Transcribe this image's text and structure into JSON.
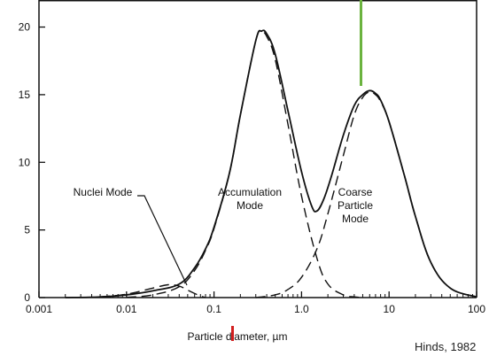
{
  "chart_data": {
    "type": "line",
    "title": "",
    "xlabel": "Particle diameter, µm",
    "ylabel": "",
    "xscale": "log",
    "xlim": [
      0.001,
      100
    ],
    "ylim": [
      0,
      22
    ],
    "grid": false,
    "x_tick_labels": [
      "0.001",
      "0.01",
      "0.1",
      "1.0",
      "10",
      "100"
    ],
    "x_tick_values": [
      0.001,
      0.01,
      0.1,
      1,
      10,
      100
    ],
    "y_tick_labels": [
      "0",
      "5",
      "10",
      "15",
      "20"
    ],
    "y_tick_values": [
      0,
      5,
      10,
      15,
      20
    ],
    "series": [
      {
        "style": "solid",
        "x": [
          0.002,
          0.005,
          0.01,
          0.02,
          0.04,
          0.06,
          0.08,
          0.1,
          0.15,
          0.2,
          0.3,
          0.35,
          0.4,
          0.5,
          0.7,
          1.0,
          1.3,
          1.5,
          1.8,
          2.2,
          3,
          4,
          5,
          6,
          7,
          8,
          10,
          15,
          20,
          30,
          50,
          100
        ],
        "y": [
          0,
          0.05,
          0.2,
          0.5,
          1.0,
          2.2,
          3.6,
          5.2,
          9.2,
          13.5,
          19.0,
          19.7,
          19.5,
          18.0,
          13.8,
          9.3,
          6.8,
          6.4,
          7.3,
          9.0,
          12.0,
          14.2,
          15.0,
          15.3,
          15.1,
          14.6,
          13.0,
          9.0,
          6.0,
          2.6,
          0.7,
          0.05
        ]
      },
      {
        "name": "Accumulation Mode",
        "style": "dashed",
        "x": [
          0.01,
          0.02,
          0.04,
          0.06,
          0.08,
          0.1,
          0.15,
          0.2,
          0.3,
          0.35,
          0.4,
          0.5,
          0.7,
          1.0,
          1.5,
          2.0,
          3.0,
          4.0,
          5.0
        ],
        "y": [
          0.02,
          0.2,
          0.8,
          2.0,
          3.5,
          5.1,
          9.2,
          13.5,
          19.0,
          19.6,
          19.3,
          17.6,
          12.8,
          7.5,
          2.9,
          1.0,
          0.2,
          0.05,
          0.0
        ]
      },
      {
        "name": "Coarse Particle Mode",
        "style": "dashed",
        "x": [
          0.3,
          0.5,
          0.7,
          1.0,
          1.5,
          2.0,
          3.0,
          4.0,
          5.0,
          6.0,
          7.0,
          8.0,
          10,
          15,
          20,
          30,
          50,
          100
        ],
        "y": [
          0.0,
          0.2,
          0.6,
          1.5,
          3.6,
          6.2,
          10.5,
          13.5,
          14.8,
          15.2,
          15.0,
          14.5,
          13.0,
          9.0,
          6.0,
          2.6,
          0.7,
          0.05
        ]
      },
      {
        "name": "Nuclei Mode",
        "style": "dashed",
        "x": [
          0.005,
          0.01,
          0.02,
          0.03,
          0.04,
          0.05,
          0.06,
          0.07,
          0.08
        ],
        "y": [
          0.05,
          0.25,
          0.7,
          0.95,
          0.85,
          0.55,
          0.3,
          0.12,
          0.0
        ]
      }
    ],
    "annotations": [
      {
        "label": "Nuclei Mode",
        "lines": [
          "Nuclei Mode"
        ]
      },
      {
        "label": "Accumulation Mode",
        "lines": [
          "Accumulation",
          "Mode"
        ]
      },
      {
        "label": "Coarse Particle Mode",
        "lines": [
          "Coarse",
          "Particle",
          "Mode"
        ]
      }
    ],
    "source_credit": "Hinds, 1982"
  },
  "colors": {
    "curve": "#111111",
    "axis": "#111111",
    "green_marker": "#6bb33f",
    "red_marker": "#d21f1f"
  }
}
